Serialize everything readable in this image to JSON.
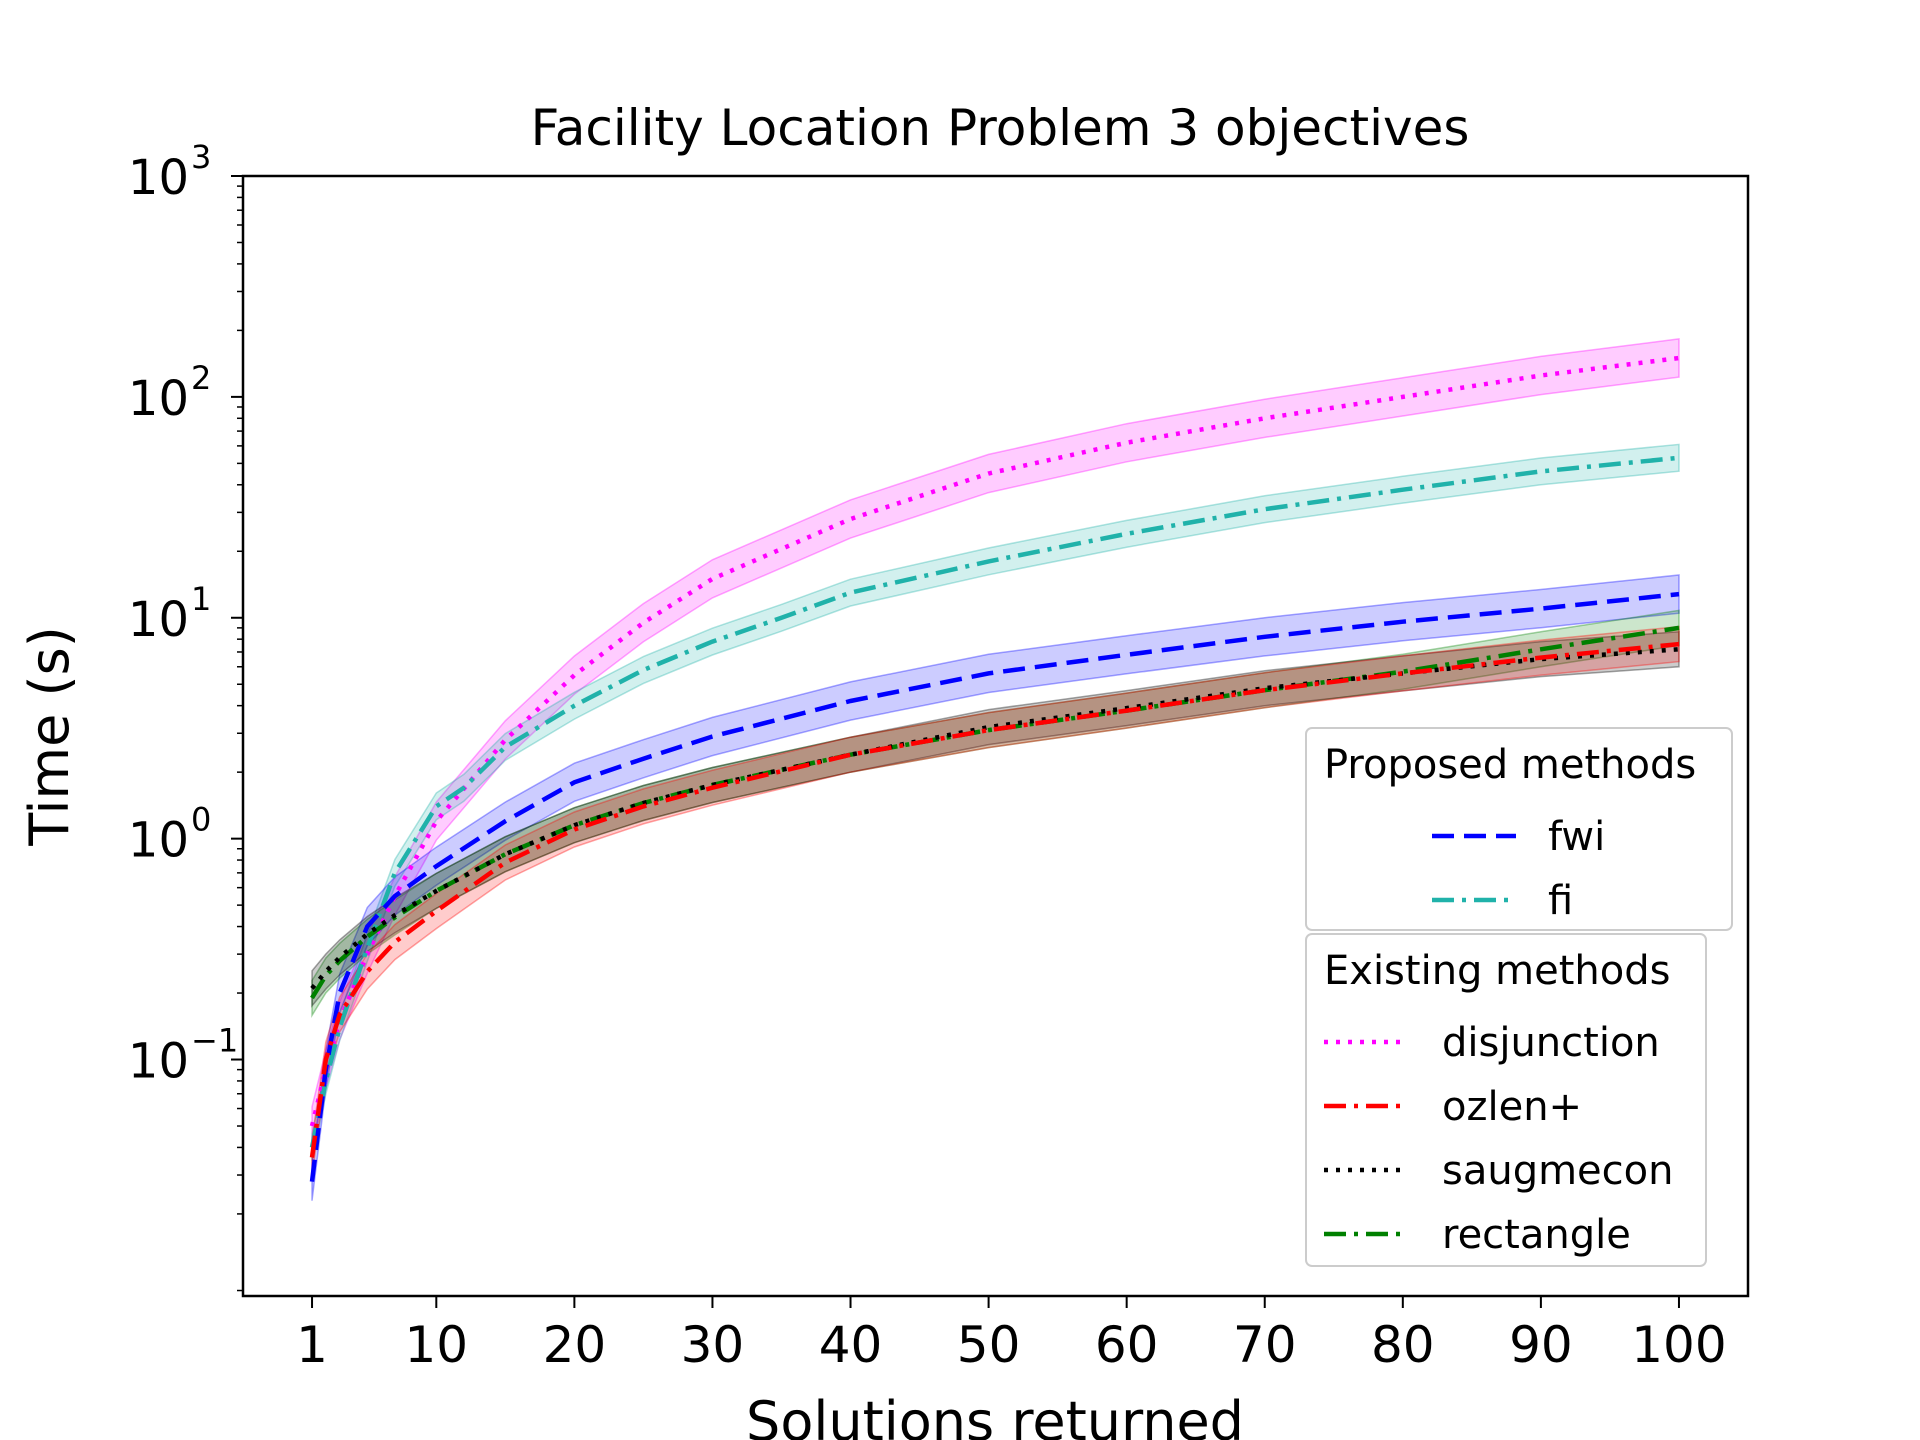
{
  "chart_data": {
    "type": "line",
    "title": "Facility Location Problem 3 objectives",
    "xlabel": "Solutions returned",
    "ylabel": "Time (s)",
    "xlim": [
      -4,
      105
    ],
    "ylim": [
      0.0085,
      1000
    ],
    "yscale": "log",
    "grid": false,
    "legend_placement": "lower-right",
    "xticks": [
      1,
      10,
      20,
      30,
      40,
      50,
      60,
      70,
      80,
      90,
      100
    ],
    "xtick_labels": [
      "1",
      "10",
      "20",
      "30",
      "40",
      "50",
      "60",
      "70",
      "80",
      "90",
      "100"
    ],
    "yticks": [
      0.1,
      1,
      10,
      100,
      1000
    ],
    "ytick_labels": [
      {
        "base": "10",
        "exp": "−1"
      },
      {
        "base": "10",
        "exp": "0"
      },
      {
        "base": "10",
        "exp": "1"
      },
      {
        "base": "10",
        "exp": "2"
      },
      {
        "base": "10",
        "exp": "3"
      }
    ],
    "legend_groups": [
      {
        "title": "Proposed methods",
        "entries": [
          "fwi",
          "fi"
        ]
      },
      {
        "title": "Existing methods",
        "entries": [
          "disjunction",
          "ozlen+",
          "saugmecon",
          "rectangle"
        ]
      }
    ],
    "series": [
      {
        "name": "disjunction",
        "color": "#ff00ff",
        "dash": "dotted",
        "x": [
          1,
          2,
          3,
          5,
          7,
          10,
          15,
          20,
          25,
          30,
          40,
          50,
          60,
          70,
          80,
          90,
          100
        ],
        "y": [
          0.05,
          0.09,
          0.15,
          0.3,
          0.55,
          1.2,
          2.8,
          5.5,
          9.5,
          15,
          28,
          45,
          62,
          80,
          100,
          125,
          150
        ],
        "band_factor": 1.22
      },
      {
        "name": "fi",
        "color": "#20b2aa",
        "dash": "dashdot",
        "x": [
          1,
          2,
          3,
          5,
          7,
          10,
          12,
          15,
          20,
          25,
          30,
          35,
          40,
          50,
          60,
          70,
          80,
          90,
          100
        ],
        "y": [
          0.04,
          0.08,
          0.14,
          0.32,
          0.7,
          1.4,
          1.7,
          2.6,
          4.0,
          5.8,
          7.8,
          10,
          13,
          18,
          24,
          31,
          38,
          46,
          53
        ],
        "band_factor": 1.15
      },
      {
        "name": "fwi",
        "color": "#0000ff",
        "dash": "dashed",
        "x": [
          1,
          2,
          3,
          5,
          7,
          10,
          15,
          20,
          25,
          30,
          40,
          50,
          60,
          70,
          80,
          90,
          100
        ],
        "y": [
          0.028,
          0.09,
          0.2,
          0.4,
          0.55,
          0.75,
          1.2,
          1.8,
          2.3,
          2.9,
          4.2,
          5.6,
          6.8,
          8.2,
          9.6,
          11,
          12.8
        ],
        "band_factor": 1.22
      },
      {
        "name": "rectangle",
        "color": "#008000",
        "dash": "dashdot",
        "x": [
          1,
          2,
          3,
          5,
          7,
          10,
          15,
          20,
          25,
          30,
          40,
          50,
          60,
          70,
          80,
          90,
          100
        ],
        "y": [
          0.19,
          0.24,
          0.28,
          0.36,
          0.44,
          0.58,
          0.85,
          1.15,
          1.45,
          1.75,
          2.4,
          3.1,
          3.8,
          4.7,
          5.7,
          7.2,
          9.0
        ],
        "band_factor": 1.2
      },
      {
        "name": "saugmecon",
        "color": "#000000",
        "dash": "dotted",
        "x": [
          1,
          2,
          3,
          5,
          7,
          10,
          15,
          20,
          25,
          30,
          40,
          50,
          60,
          70,
          80,
          90,
          100
        ],
        "y": [
          0.21,
          0.25,
          0.29,
          0.37,
          0.45,
          0.58,
          0.85,
          1.15,
          1.45,
          1.75,
          2.4,
          3.2,
          3.9,
          4.8,
          5.6,
          6.5,
          7.2
        ],
        "band_factor": 1.2
      },
      {
        "name": "ozlen+",
        "color": "#ff0000",
        "dash": "dashdot",
        "x": [
          1,
          2,
          3,
          5,
          7,
          10,
          15,
          20,
          25,
          30,
          40,
          50,
          60,
          70,
          80,
          90,
          100
        ],
        "y": [
          0.036,
          0.1,
          0.16,
          0.25,
          0.34,
          0.47,
          0.78,
          1.1,
          1.4,
          1.7,
          2.4,
          3.1,
          3.8,
          4.7,
          5.6,
          6.6,
          7.6
        ],
        "band_factor": 1.2
      }
    ]
  }
}
